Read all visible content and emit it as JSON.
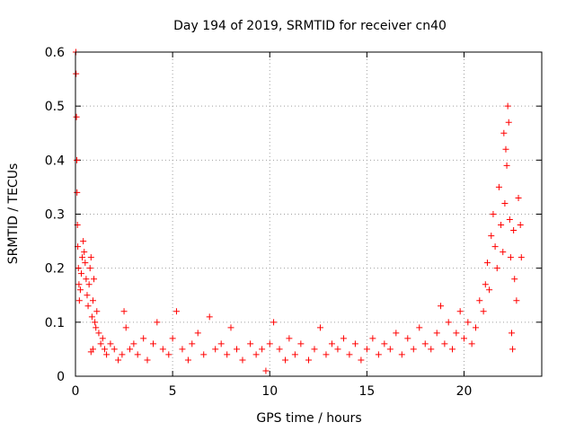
{
  "chart_data": {
    "type": "scatter",
    "title": "Day 194 of 2019, SRMTID for receiver cn40",
    "xlabel": "GPS time / hours",
    "ylabel": "SRMTID / TECUs",
    "xlim": [
      0,
      24
    ],
    "ylim": [
      0,
      0.6
    ],
    "xticks": [
      0,
      5,
      10,
      15,
      20
    ],
    "yticks": [
      0,
      0.1,
      0.2,
      0.3,
      0.4,
      0.5,
      0.6
    ],
    "grid": true,
    "marker": "+",
    "color": "#ff0000",
    "series": [
      {
        "name": "SRMTID",
        "points": [
          [
            0.02,
            0.6
          ],
          [
            0.03,
            0.56
          ],
          [
            0.05,
            0.48
          ],
          [
            0.07,
            0.4
          ],
          [
            0.08,
            0.34
          ],
          [
            0.1,
            0.28
          ],
          [
            0.12,
            0.24
          ],
          [
            0.15,
            0.2
          ],
          [
            0.18,
            0.17
          ],
          [
            0.2,
            0.14
          ],
          [
            0.25,
            0.16
          ],
          [
            0.3,
            0.19
          ],
          [
            0.35,
            0.22
          ],
          [
            0.4,
            0.25
          ],
          [
            0.45,
            0.23
          ],
          [
            0.5,
            0.21
          ],
          [
            0.55,
            0.18
          ],
          [
            0.6,
            0.15
          ],
          [
            0.65,
            0.13
          ],
          [
            0.7,
            0.17
          ],
          [
            0.75,
            0.2
          ],
          [
            0.8,
            0.22
          ],
          [
            0.85,
            0.11
          ],
          [
            0.9,
            0.14
          ],
          [
            0.95,
            0.18
          ],
          [
            1.0,
            0.1
          ],
          [
            1.05,
            0.09
          ],
          [
            1.1,
            0.12
          ],
          [
            1.2,
            0.08
          ],
          [
            1.3,
            0.06
          ],
          [
            0.8,
            0.045
          ],
          [
            0.9,
            0.05
          ],
          [
            1.4,
            0.07
          ],
          [
            1.5,
            0.05
          ],
          [
            1.6,
            0.04
          ],
          [
            1.8,
            0.06
          ],
          [
            2.0,
            0.05
          ],
          [
            2.2,
            0.03
          ],
          [
            2.4,
            0.04
          ],
          [
            2.5,
            0.12
          ],
          [
            2.6,
            0.09
          ],
          [
            2.8,
            0.05
          ],
          [
            3.0,
            0.06
          ],
          [
            3.2,
            0.04
          ],
          [
            3.5,
            0.07
          ],
          [
            3.7,
            0.03
          ],
          [
            4.0,
            0.06
          ],
          [
            4.2,
            0.1
          ],
          [
            4.5,
            0.05
          ],
          [
            4.8,
            0.04
          ],
          [
            5.0,
            0.07
          ],
          [
            5.2,
            0.12
          ],
          [
            5.5,
            0.05
          ],
          [
            5.8,
            0.03
          ],
          [
            6.0,
            0.06
          ],
          [
            6.3,
            0.08
          ],
          [
            6.6,
            0.04
          ],
          [
            6.9,
            0.11
          ],
          [
            7.2,
            0.05
          ],
          [
            7.5,
            0.06
          ],
          [
            7.8,
            0.04
          ],
          [
            8.0,
            0.09
          ],
          [
            8.3,
            0.05
          ],
          [
            8.6,
            0.03
          ],
          [
            9.0,
            0.06
          ],
          [
            9.3,
            0.04
          ],
          [
            9.6,
            0.05
          ],
          [
            9.8,
            0.01
          ],
          [
            10.0,
            0.06
          ],
          [
            10.2,
            0.1
          ],
          [
            10.5,
            0.05
          ],
          [
            10.8,
            0.03
          ],
          [
            11.0,
            0.07
          ],
          [
            11.3,
            0.04
          ],
          [
            11.6,
            0.06
          ],
          [
            12.0,
            0.03
          ],
          [
            12.3,
            0.05
          ],
          [
            12.6,
            0.09
          ],
          [
            12.9,
            0.04
          ],
          [
            13.2,
            0.06
          ],
          [
            13.5,
            0.05
          ],
          [
            13.8,
            0.07
          ],
          [
            14.1,
            0.04
          ],
          [
            14.4,
            0.06
          ],
          [
            14.7,
            0.03
          ],
          [
            15.0,
            0.05
          ],
          [
            15.3,
            0.07
          ],
          [
            15.6,
            0.04
          ],
          [
            15.9,
            0.06
          ],
          [
            16.2,
            0.05
          ],
          [
            16.5,
            0.08
          ],
          [
            16.8,
            0.04
          ],
          [
            17.1,
            0.07
          ],
          [
            17.4,
            0.05
          ],
          [
            17.7,
            0.09
          ],
          [
            18.0,
            0.06
          ],
          [
            18.3,
            0.05
          ],
          [
            18.6,
            0.08
          ],
          [
            18.8,
            0.13
          ],
          [
            19.0,
            0.06
          ],
          [
            19.2,
            0.1
          ],
          [
            19.4,
            0.05
          ],
          [
            19.6,
            0.08
          ],
          [
            19.8,
            0.12
          ],
          [
            20.0,
            0.07
          ],
          [
            20.2,
            0.1
          ],
          [
            20.4,
            0.06
          ],
          [
            20.6,
            0.09
          ],
          [
            20.8,
            0.14
          ],
          [
            21.0,
            0.12
          ],
          [
            21.1,
            0.17
          ],
          [
            21.2,
            0.21
          ],
          [
            21.3,
            0.16
          ],
          [
            21.4,
            0.26
          ],
          [
            21.5,
            0.3
          ],
          [
            21.6,
            0.24
          ],
          [
            21.7,
            0.2
          ],
          [
            21.8,
            0.35
          ],
          [
            21.9,
            0.28
          ],
          [
            22.0,
            0.23
          ],
          [
            22.05,
            0.45
          ],
          [
            22.1,
            0.32
          ],
          [
            22.15,
            0.42
          ],
          [
            22.2,
            0.39
          ],
          [
            22.25,
            0.5
          ],
          [
            22.3,
            0.47
          ],
          [
            22.35,
            0.29
          ],
          [
            22.4,
            0.22
          ],
          [
            22.45,
            0.08
          ],
          [
            22.5,
            0.05
          ],
          [
            22.55,
            0.27
          ],
          [
            22.6,
            0.18
          ],
          [
            22.7,
            0.14
          ],
          [
            22.8,
            0.33
          ],
          [
            22.9,
            0.28
          ],
          [
            22.95,
            0.22
          ]
        ]
      }
    ]
  }
}
